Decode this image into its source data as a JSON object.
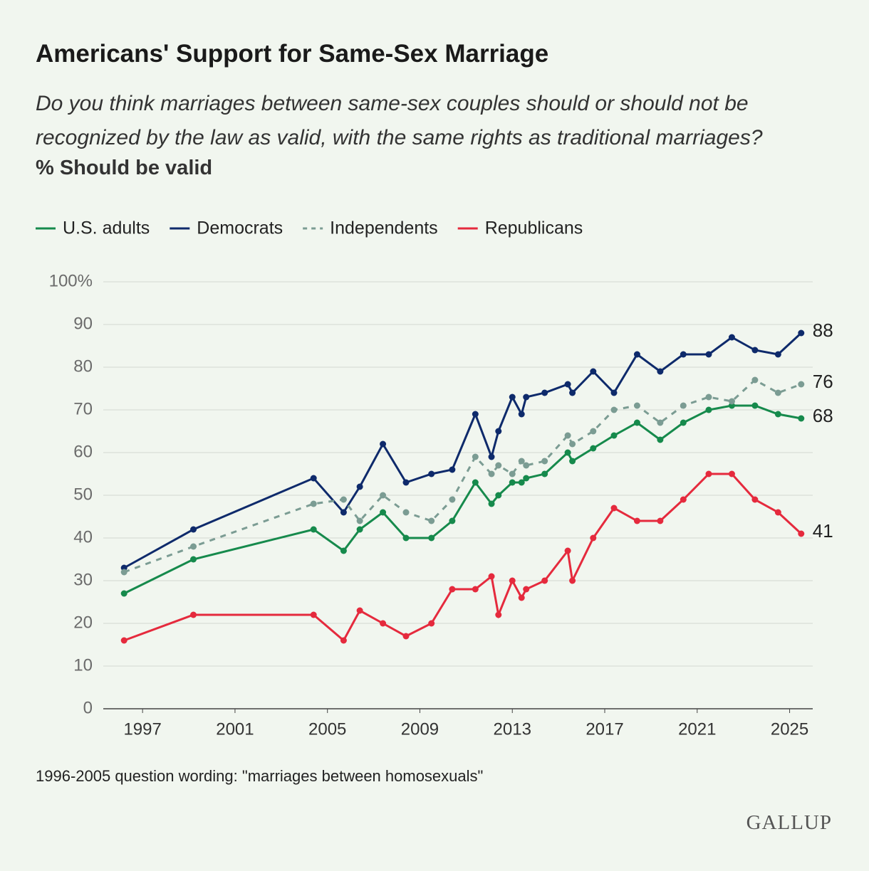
{
  "chart_data": {
    "type": "line",
    "title": "Americans' Support for Same-Sex Marriage",
    "subtitle": "Do you think marriages between same-sex couples should or should not be recognized by the law as valid, with the same rights as traditional marriages?",
    "measure": "% Should be valid",
    "footnote": "1996-2005 question wording: \"marriages between homosexuals\"",
    "source": "GALLUP",
    "x": [
      1996.2,
      1999.2,
      2004.4,
      2005.7,
      2006.4,
      2007.4,
      2008.4,
      2009.5,
      2010.4,
      2011.4,
      2012.1,
      2012.4,
      2013.0,
      2013.4,
      2013.6,
      2014.4,
      2015.4,
      2015.6,
      2016.5,
      2017.4,
      2018.4,
      2019.4,
      2020.4,
      2021.5,
      2022.5,
      2023.5,
      2024.5,
      2025.5
    ],
    "series": [
      {
        "name": "U.S. adults",
        "color": "#168a4c",
        "dashed": false,
        "end_label": true,
        "values": [
          27,
          35,
          42,
          37,
          42,
          46,
          40,
          40,
          44,
          53,
          48,
          50,
          53,
          53,
          54,
          55,
          60,
          58,
          61,
          64,
          67,
          63,
          67,
          70,
          71,
          71,
          69,
          68
        ]
      },
      {
        "name": "Democrats",
        "color": "#0e2a6b",
        "dashed": false,
        "end_label": true,
        "values": [
          33,
          42,
          54,
          46,
          52,
          62,
          53,
          55,
          56,
          69,
          59,
          65,
          73,
          69,
          73,
          74,
          76,
          74,
          79,
          74,
          83,
          79,
          83,
          83,
          87,
          84,
          83,
          88
        ]
      },
      {
        "name": "Independents",
        "color": "#7b9c93",
        "dashed": true,
        "end_label": true,
        "values": [
          32,
          38,
          48,
          49,
          44,
          50,
          46,
          44,
          49,
          59,
          55,
          57,
          55,
          58,
          57,
          58,
          64,
          62,
          65,
          70,
          71,
          67,
          71,
          73,
          72,
          77,
          74,
          76
        ]
      },
      {
        "name": "Republicans",
        "color": "#e52a3d",
        "dashed": false,
        "end_label": true,
        "values": [
          16,
          22,
          22,
          16,
          23,
          20,
          17,
          20,
          28,
          28,
          31,
          22,
          30,
          26,
          28,
          30,
          37,
          30,
          40,
          47,
          44,
          44,
          49,
          55,
          55,
          49,
          46,
          41
        ]
      }
    ],
    "xlim": [
      1995.3,
      2026.0
    ],
    "xticks": [
      1997,
      2001,
      2005,
      2009,
      2013,
      2017,
      2021,
      2025
    ],
    "ylim": [
      0,
      100
    ],
    "yticks": [
      0,
      10,
      20,
      30,
      40,
      50,
      60,
      70,
      80,
      90,
      {
        "value": 100,
        "label": "100%"
      }
    ],
    "grid": true
  }
}
